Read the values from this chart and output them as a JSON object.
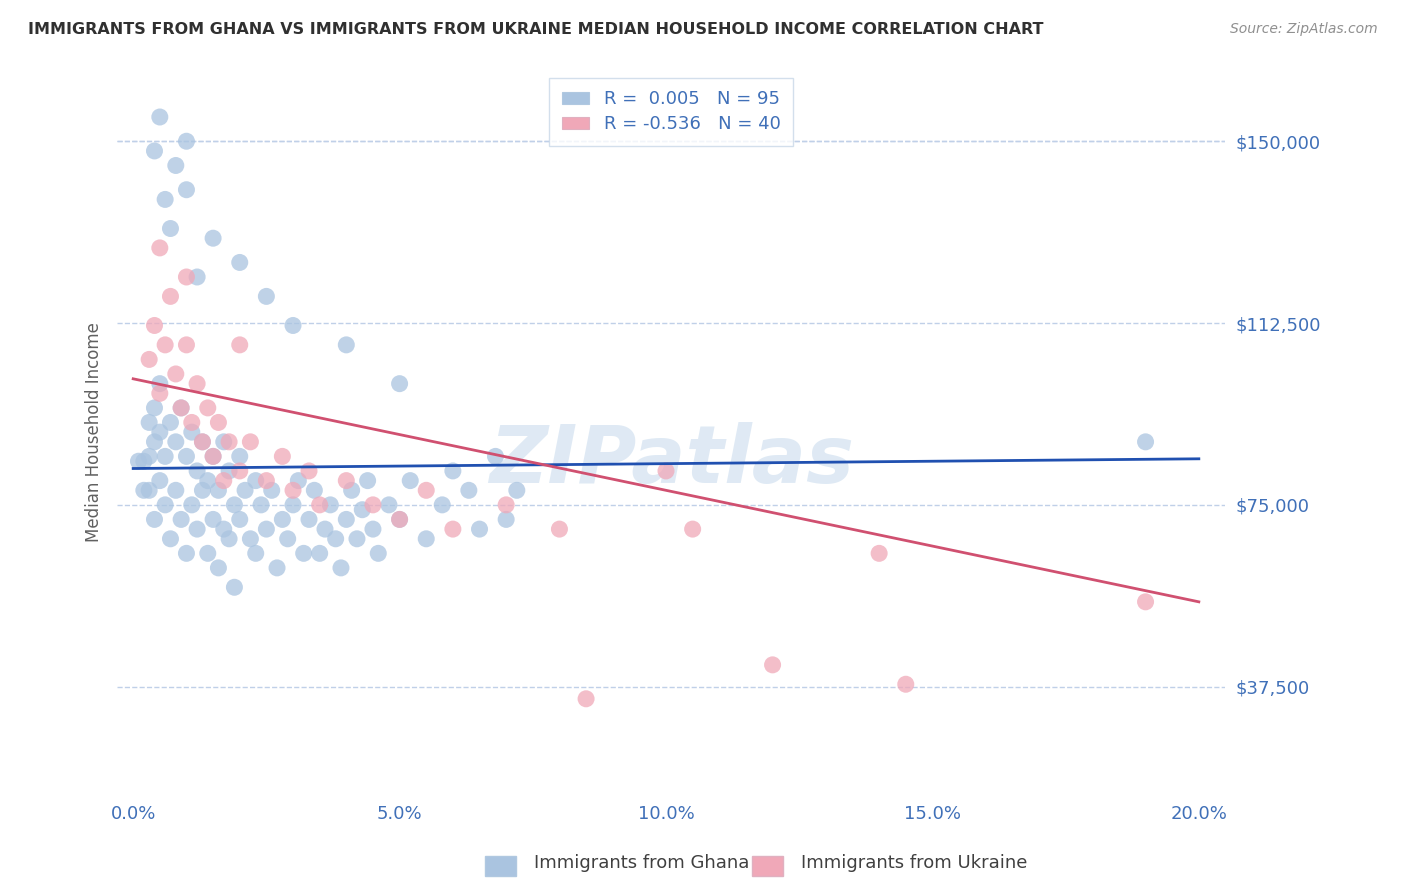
{
  "title": "IMMIGRANTS FROM GHANA VS IMMIGRANTS FROM UKRAINE MEDIAN HOUSEHOLD INCOME CORRELATION CHART",
  "source_text": "Source: ZipAtlas.com",
  "ylabel": "Median Household Income",
  "xlabel_ticks": [
    "0.0%",
    "5.0%",
    "10.0%",
    "15.0%",
    "20.0%"
  ],
  "xlabel_values": [
    0.0,
    5.0,
    10.0,
    15.0,
    20.0
  ],
  "xlim": [
    -0.3,
    20.5
  ],
  "ylim": [
    15000,
    165000
  ],
  "yticks": [
    37500,
    75000,
    112500,
    150000
  ],
  "ytick_labels": [
    "$37,500",
    "$75,000",
    "$112,500",
    "$150,000"
  ],
  "ghana_color": "#aac4e0",
  "ukraine_color": "#f0a8b8",
  "ghana_line_color": "#2050b0",
  "ukraine_line_color": "#d05070",
  "ghana_R": 0.005,
  "ghana_N": 95,
  "ukraine_R": -0.536,
  "ukraine_N": 40,
  "legend_ghana_label": "Immigrants from Ghana",
  "legend_ukraine_label": "Immigrants from Ukraine",
  "watermark": "ZIPatlas",
  "background_color": "#ffffff",
  "grid_color": "#c0d0e8",
  "title_color": "#303030",
  "axis_color": "#4070b8",
  "ghana_trend_y0": 82500,
  "ghana_trend_y1": 84500,
  "ukraine_trend_y0": 101000,
  "ukraine_trend_y1": 55000,
  "ghana_scatter": [
    [
      0.2,
      84000
    ],
    [
      0.3,
      92000
    ],
    [
      0.3,
      78000
    ],
    [
      0.4,
      88000
    ],
    [
      0.4,
      95000
    ],
    [
      0.5,
      80000
    ],
    [
      0.5,
      100000
    ],
    [
      0.6,
      85000
    ],
    [
      0.6,
      75000
    ],
    [
      0.7,
      92000
    ],
    [
      0.7,
      68000
    ],
    [
      0.8,
      88000
    ],
    [
      0.8,
      78000
    ],
    [
      0.9,
      95000
    ],
    [
      0.9,
      72000
    ],
    [
      1.0,
      85000
    ],
    [
      1.0,
      65000
    ],
    [
      1.1,
      90000
    ],
    [
      1.1,
      75000
    ],
    [
      1.2,
      82000
    ],
    [
      1.2,
      70000
    ],
    [
      1.3,
      88000
    ],
    [
      1.3,
      78000
    ],
    [
      1.4,
      80000
    ],
    [
      1.4,
      65000
    ],
    [
      1.5,
      85000
    ],
    [
      1.5,
      72000
    ],
    [
      1.6,
      78000
    ],
    [
      1.6,
      62000
    ],
    [
      1.7,
      88000
    ],
    [
      1.7,
      70000
    ],
    [
      1.8,
      82000
    ],
    [
      1.8,
      68000
    ],
    [
      1.9,
      75000
    ],
    [
      1.9,
      58000
    ],
    [
      2.0,
      85000
    ],
    [
      2.0,
      72000
    ],
    [
      2.1,
      78000
    ],
    [
      2.2,
      68000
    ],
    [
      2.3,
      80000
    ],
    [
      2.3,
      65000
    ],
    [
      2.4,
      75000
    ],
    [
      2.5,
      70000
    ],
    [
      2.6,
      78000
    ],
    [
      2.7,
      62000
    ],
    [
      2.8,
      72000
    ],
    [
      2.9,
      68000
    ],
    [
      3.0,
      75000
    ],
    [
      3.1,
      80000
    ],
    [
      3.2,
      65000
    ],
    [
      3.3,
      72000
    ],
    [
      3.4,
      78000
    ],
    [
      3.5,
      65000
    ],
    [
      3.6,
      70000
    ],
    [
      3.7,
      75000
    ],
    [
      3.8,
      68000
    ],
    [
      3.9,
      62000
    ],
    [
      4.0,
      72000
    ],
    [
      4.1,
      78000
    ],
    [
      4.2,
      68000
    ],
    [
      4.3,
      74000
    ],
    [
      4.4,
      80000
    ],
    [
      4.5,
      70000
    ],
    [
      4.6,
      65000
    ],
    [
      4.8,
      75000
    ],
    [
      5.0,
      72000
    ],
    [
      5.2,
      80000
    ],
    [
      5.5,
      68000
    ],
    [
      5.8,
      75000
    ],
    [
      6.0,
      82000
    ],
    [
      6.3,
      78000
    ],
    [
      6.5,
      70000
    ],
    [
      6.8,
      85000
    ],
    [
      7.0,
      72000
    ],
    [
      7.2,
      78000
    ],
    [
      0.1,
      84000
    ],
    [
      0.2,
      78000
    ],
    [
      0.3,
      85000
    ],
    [
      0.4,
      72000
    ],
    [
      0.5,
      90000
    ],
    [
      1.0,
      140000
    ],
    [
      1.5,
      130000
    ],
    [
      2.0,
      125000
    ],
    [
      0.8,
      145000
    ],
    [
      0.6,
      138000
    ],
    [
      0.4,
      148000
    ],
    [
      0.7,
      132000
    ],
    [
      1.2,
      122000
    ],
    [
      2.5,
      118000
    ],
    [
      3.0,
      112000
    ],
    [
      4.0,
      108000
    ],
    [
      5.0,
      100000
    ],
    [
      0.5,
      155000
    ],
    [
      1.0,
      150000
    ],
    [
      19.0,
      88000
    ]
  ],
  "ukraine_scatter": [
    [
      0.3,
      105000
    ],
    [
      0.4,
      112000
    ],
    [
      0.5,
      98000
    ],
    [
      0.6,
      108000
    ],
    [
      0.7,
      118000
    ],
    [
      0.8,
      102000
    ],
    [
      0.9,
      95000
    ],
    [
      1.0,
      108000
    ],
    [
      1.1,
      92000
    ],
    [
      1.2,
      100000
    ],
    [
      1.3,
      88000
    ],
    [
      1.4,
      95000
    ],
    [
      1.5,
      85000
    ],
    [
      1.6,
      92000
    ],
    [
      1.7,
      80000
    ],
    [
      1.8,
      88000
    ],
    [
      2.0,
      82000
    ],
    [
      2.2,
      88000
    ],
    [
      2.5,
      80000
    ],
    [
      2.8,
      85000
    ],
    [
      3.0,
      78000
    ],
    [
      3.3,
      82000
    ],
    [
      3.5,
      75000
    ],
    [
      4.0,
      80000
    ],
    [
      4.5,
      75000
    ],
    [
      5.0,
      72000
    ],
    [
      5.5,
      78000
    ],
    [
      6.0,
      70000
    ],
    [
      7.0,
      75000
    ],
    [
      8.0,
      70000
    ],
    [
      0.5,
      128000
    ],
    [
      1.0,
      122000
    ],
    [
      2.0,
      108000
    ],
    [
      10.0,
      82000
    ],
    [
      10.5,
      70000
    ],
    [
      12.0,
      42000
    ],
    [
      14.5,
      38000
    ],
    [
      19.0,
      55000
    ],
    [
      14.0,
      65000
    ],
    [
      8.5,
      35000
    ]
  ]
}
